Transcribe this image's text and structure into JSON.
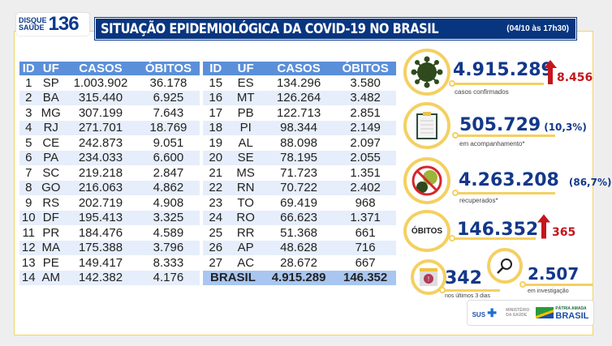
{
  "logo": {
    "line1": "DISQUE",
    "line2": "SAÚDE",
    "number": "136"
  },
  "header": {
    "title": "SITUAÇÃO EPIDEMIOLÓGICA DA COVID-19 NO BRASIL",
    "date": "(04/10 às 17h30)"
  },
  "table": {
    "columns": [
      "ID",
      "UF",
      "CASOS",
      "ÓBITOS"
    ],
    "rows": [
      [
        "1",
        "SP",
        "1.003.902",
        "36.178"
      ],
      [
        "2",
        "BA",
        "315.440",
        "6.925"
      ],
      [
        "3",
        "MG",
        "307.199",
        "7.643"
      ],
      [
        "4",
        "RJ",
        "271.701",
        "18.769"
      ],
      [
        "5",
        "CE",
        "242.873",
        "9.051"
      ],
      [
        "6",
        "PA",
        "234.033",
        "6.600"
      ],
      [
        "7",
        "SC",
        "219.218",
        "2.847"
      ],
      [
        "8",
        "GO",
        "216.063",
        "4.862"
      ],
      [
        "9",
        "RS",
        "202.719",
        "4.908"
      ],
      [
        "10",
        "DF",
        "195.413",
        "3.325"
      ],
      [
        "11",
        "PR",
        "184.476",
        "4.589"
      ],
      [
        "12",
        "MA",
        "175.388",
        "3.796"
      ],
      [
        "13",
        "PE",
        "149.417",
        "8.333"
      ],
      [
        "14",
        "AM",
        "142.382",
        "4.176"
      ],
      [
        "15",
        "ES",
        "134.296",
        "3.580"
      ],
      [
        "16",
        "MT",
        "126.264",
        "3.482"
      ],
      [
        "17",
        "PB",
        "122.713",
        "2.851"
      ],
      [
        "18",
        "PI",
        "98.344",
        "2.149"
      ],
      [
        "19",
        "AL",
        "88.098",
        "2.097"
      ],
      [
        "20",
        "SE",
        "78.195",
        "2.055"
      ],
      [
        "21",
        "MS",
        "71.723",
        "1.351"
      ],
      [
        "22",
        "RN",
        "70.722",
        "2.402"
      ],
      [
        "23",
        "TO",
        "69.419",
        "968"
      ],
      [
        "24",
        "RO",
        "66.623",
        "1.371"
      ],
      [
        "25",
        "RR",
        "51.368",
        "661"
      ],
      [
        "26",
        "AP",
        "48.628",
        "716"
      ],
      [
        "27",
        "AC",
        "28.672",
        "667"
      ]
    ],
    "total": {
      "label": "BRASIL",
      "casos": "4.915.289",
      "obitos": "146.352"
    }
  },
  "stats": {
    "confirmed": {
      "value": "4.915.289",
      "delta": "8.456",
      "label": "casos confirmados"
    },
    "monitoring": {
      "value": "505.729",
      "pct": "(10,3%)",
      "label": "em acompanhamento*"
    },
    "recovered": {
      "value": "4.263.208",
      "pct": "(86,7%)",
      "label": "recuperados*"
    },
    "deaths": {
      "badge": "ÓBITOS",
      "value": "146.352",
      "delta": "365"
    },
    "recent": {
      "value": "342",
      "label": "nos últimos 3 dias"
    },
    "investigation": {
      "value": "2.507",
      "label": "em investigação"
    }
  },
  "footer": {
    "sus": "SUS",
    "ministry": "MINISTÉRIO DA SAÚDE",
    "gov1": "PÁTRIA AMADA",
    "gov2": "BRASIL"
  },
  "colors": {
    "navy": "#08357f",
    "header_blue": "#5b8fd9",
    "accent_yellow": "#f4d062",
    "red": "#c4161c"
  }
}
